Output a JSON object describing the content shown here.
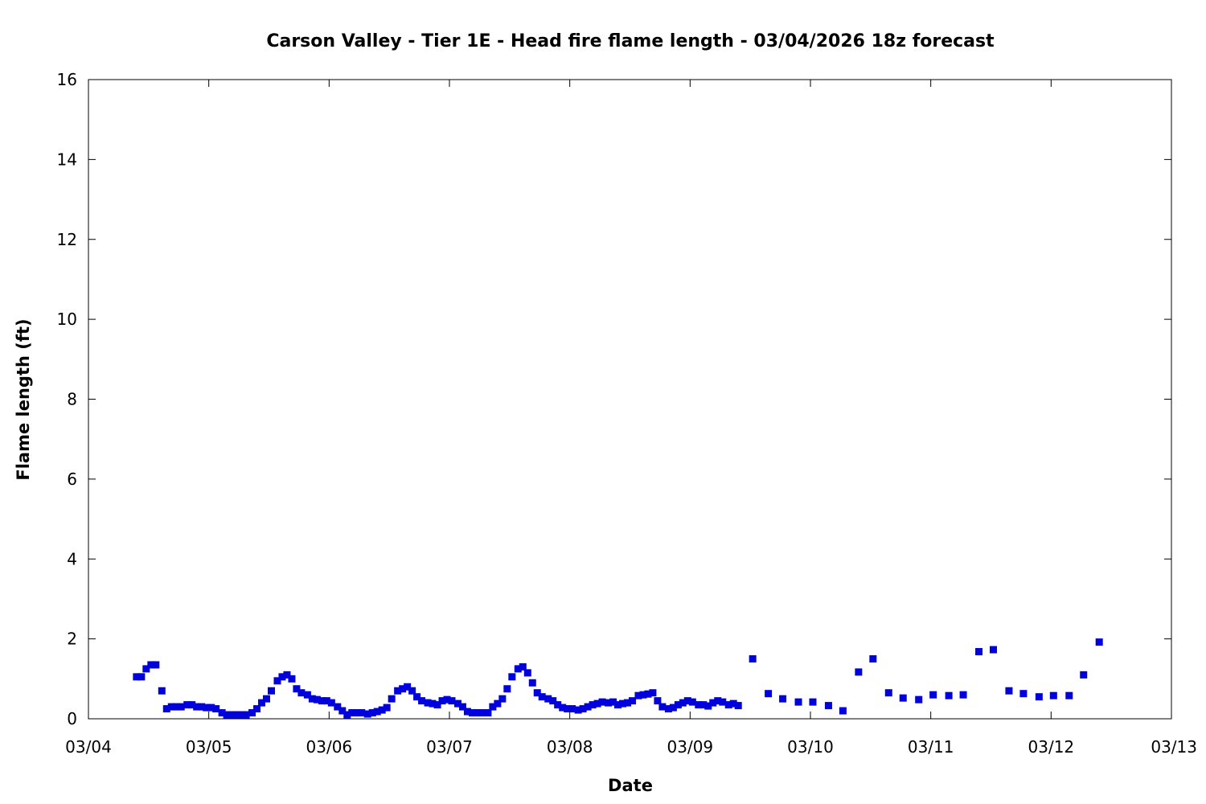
{
  "chart_data": {
    "type": "scatter",
    "title": "Carson Valley - Tier 1E - Head fire flame length - 03/04/2026 18z forecast",
    "xlabel": "Date",
    "ylabel": "Flame length (ft)",
    "x_ticks": [
      "03/04",
      "03/05",
      "03/06",
      "03/07",
      "03/08",
      "03/09",
      "03/10",
      "03/11",
      "03/12",
      "03/13"
    ],
    "y_ticks": [
      "0",
      "2",
      "4",
      "6",
      "8",
      "10",
      "12",
      "14",
      "16"
    ],
    "xlim": [
      0,
      9
    ],
    "ylim": [
      0,
      16
    ],
    "grid": false,
    "marker_color": "#0000dd",
    "series": [
      {
        "name": "",
        "points": [
          [
            0.4,
            1.05
          ],
          [
            0.44,
            1.05
          ],
          [
            0.48,
            1.25
          ],
          [
            0.52,
            1.35
          ],
          [
            0.56,
            1.35
          ],
          [
            0.61,
            0.7
          ],
          [
            0.65,
            0.25
          ],
          [
            0.69,
            0.3
          ],
          [
            0.73,
            0.3
          ],
          [
            0.77,
            0.3
          ],
          [
            0.82,
            0.35
          ],
          [
            0.86,
            0.35
          ],
          [
            0.9,
            0.3
          ],
          [
            0.94,
            0.3
          ],
          [
            0.98,
            0.28
          ],
          [
            1.02,
            0.28
          ],
          [
            1.06,
            0.25
          ],
          [
            1.11,
            0.15
          ],
          [
            1.15,
            0.1
          ],
          [
            1.19,
            0.1
          ],
          [
            1.23,
            0.1
          ],
          [
            1.27,
            0.1
          ],
          [
            1.31,
            0.1
          ],
          [
            1.36,
            0.15
          ],
          [
            1.4,
            0.25
          ],
          [
            1.44,
            0.4
          ],
          [
            1.48,
            0.5
          ],
          [
            1.52,
            0.7
          ],
          [
            1.57,
            0.95
          ],
          [
            1.61,
            1.05
          ],
          [
            1.65,
            1.1
          ],
          [
            1.69,
            1.0
          ],
          [
            1.73,
            0.75
          ],
          [
            1.77,
            0.65
          ],
          [
            1.82,
            0.6
          ],
          [
            1.86,
            0.5
          ],
          [
            1.9,
            0.48
          ],
          [
            1.94,
            0.45
          ],
          [
            1.98,
            0.45
          ],
          [
            2.02,
            0.4
          ],
          [
            2.07,
            0.3
          ],
          [
            2.11,
            0.2
          ],
          [
            2.15,
            0.1
          ],
          [
            2.19,
            0.15
          ],
          [
            2.23,
            0.15
          ],
          [
            2.27,
            0.15
          ],
          [
            2.32,
            0.12
          ],
          [
            2.36,
            0.15
          ],
          [
            2.4,
            0.18
          ],
          [
            2.44,
            0.22
          ],
          [
            2.48,
            0.28
          ],
          [
            2.52,
            0.5
          ],
          [
            2.57,
            0.7
          ],
          [
            2.61,
            0.75
          ],
          [
            2.65,
            0.8
          ],
          [
            2.69,
            0.7
          ],
          [
            2.73,
            0.55
          ],
          [
            2.77,
            0.45
          ],
          [
            2.82,
            0.4
          ],
          [
            2.86,
            0.38
          ],
          [
            2.9,
            0.35
          ],
          [
            2.94,
            0.45
          ],
          [
            2.98,
            0.48
          ],
          [
            3.02,
            0.45
          ],
          [
            3.07,
            0.38
          ],
          [
            3.11,
            0.3
          ],
          [
            3.15,
            0.18
          ],
          [
            3.19,
            0.15
          ],
          [
            3.23,
            0.15
          ],
          [
            3.27,
            0.15
          ],
          [
            3.32,
            0.15
          ],
          [
            3.36,
            0.3
          ],
          [
            3.4,
            0.38
          ],
          [
            3.44,
            0.5
          ],
          [
            3.48,
            0.75
          ],
          [
            3.52,
            1.05
          ],
          [
            3.57,
            1.25
          ],
          [
            3.61,
            1.3
          ],
          [
            3.65,
            1.15
          ],
          [
            3.69,
            0.9
          ],
          [
            3.73,
            0.65
          ],
          [
            3.77,
            0.55
          ],
          [
            3.82,
            0.5
          ],
          [
            3.86,
            0.45
          ],
          [
            3.9,
            0.35
          ],
          [
            3.94,
            0.28
          ],
          [
            3.98,
            0.25
          ],
          [
            4.02,
            0.25
          ],
          [
            4.07,
            0.22
          ],
          [
            4.11,
            0.25
          ],
          [
            4.15,
            0.3
          ],
          [
            4.19,
            0.35
          ],
          [
            4.23,
            0.38
          ],
          [
            4.27,
            0.42
          ],
          [
            4.32,
            0.4
          ],
          [
            4.36,
            0.42
          ],
          [
            4.4,
            0.35
          ],
          [
            4.44,
            0.38
          ],
          [
            4.48,
            0.4
          ],
          [
            4.52,
            0.45
          ],
          [
            4.57,
            0.58
          ],
          [
            4.61,
            0.6
          ],
          [
            4.65,
            0.62
          ],
          [
            4.69,
            0.65
          ],
          [
            4.73,
            0.45
          ],
          [
            4.77,
            0.3
          ],
          [
            4.82,
            0.25
          ],
          [
            4.86,
            0.28
          ],
          [
            4.9,
            0.35
          ],
          [
            4.94,
            0.4
          ],
          [
            4.98,
            0.45
          ],
          [
            5.02,
            0.42
          ],
          [
            5.07,
            0.35
          ],
          [
            5.11,
            0.35
          ],
          [
            5.15,
            0.32
          ],
          [
            5.19,
            0.4
          ],
          [
            5.23,
            0.45
          ],
          [
            5.27,
            0.42
          ],
          [
            5.32,
            0.35
          ],
          [
            5.36,
            0.38
          ],
          [
            5.4,
            0.33
          ],
          [
            5.52,
            1.5
          ],
          [
            5.65,
            0.63
          ],
          [
            5.77,
            0.5
          ],
          [
            5.9,
            0.42
          ],
          [
            6.02,
            0.42
          ],
          [
            6.15,
            0.33
          ],
          [
            6.27,
            0.2
          ],
          [
            6.4,
            1.17
          ],
          [
            6.52,
            1.5
          ],
          [
            6.65,
            0.65
          ],
          [
            6.77,
            0.52
          ],
          [
            6.9,
            0.48
          ],
          [
            7.02,
            0.6
          ],
          [
            7.15,
            0.58
          ],
          [
            7.27,
            0.6
          ],
          [
            7.4,
            1.68
          ],
          [
            7.52,
            1.73
          ],
          [
            7.65,
            0.7
          ],
          [
            7.77,
            0.63
          ],
          [
            7.9,
            0.55
          ],
          [
            8.02,
            0.58
          ],
          [
            8.15,
            0.58
          ],
          [
            8.27,
            1.1
          ],
          [
            8.4,
            1.92
          ]
        ]
      }
    ]
  }
}
